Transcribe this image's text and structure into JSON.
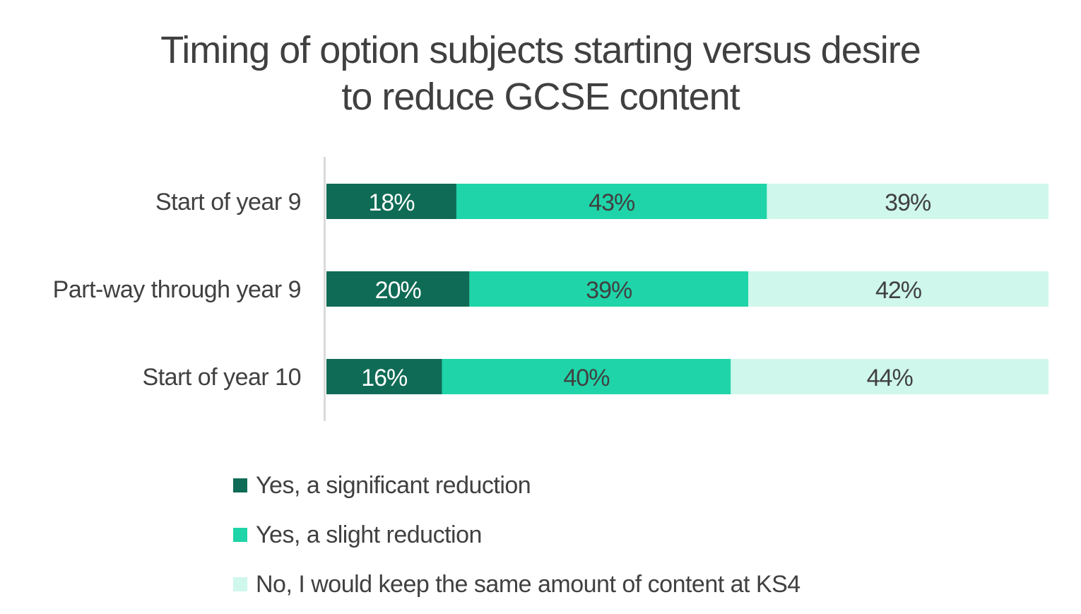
{
  "chart_data": {
    "type": "bar",
    "orientation": "horizontal",
    "stacked": "percent",
    "title": "Timing of option subjects starting versus desire to reduce GCSE content",
    "title_lines": [
      "Timing of option subjects starting versus desire",
      "to reduce GCSE content"
    ],
    "categories": [
      "Start of year 9",
      "Part-way through year 9",
      "Start of year 10"
    ],
    "series": [
      {
        "name": "Yes, a significant reduction",
        "color": "#0f6b55",
        "label_color": "#ffffff",
        "values": [
          18,
          20,
          16
        ]
      },
      {
        "name": "Yes, a slight reduction",
        "color": "#1fd4a9",
        "label_color": "#404040",
        "values": [
          43,
          39,
          40
        ]
      },
      {
        "name": "No, I would keep the same amount of content at KS4",
        "color": "#cff7ec",
        "label_color": "#404040",
        "values": [
          39,
          42,
          44
        ]
      }
    ],
    "value_suffix": "%",
    "xlabel": "",
    "ylabel": "",
    "grid": false,
    "legend_position": "bottom"
  }
}
